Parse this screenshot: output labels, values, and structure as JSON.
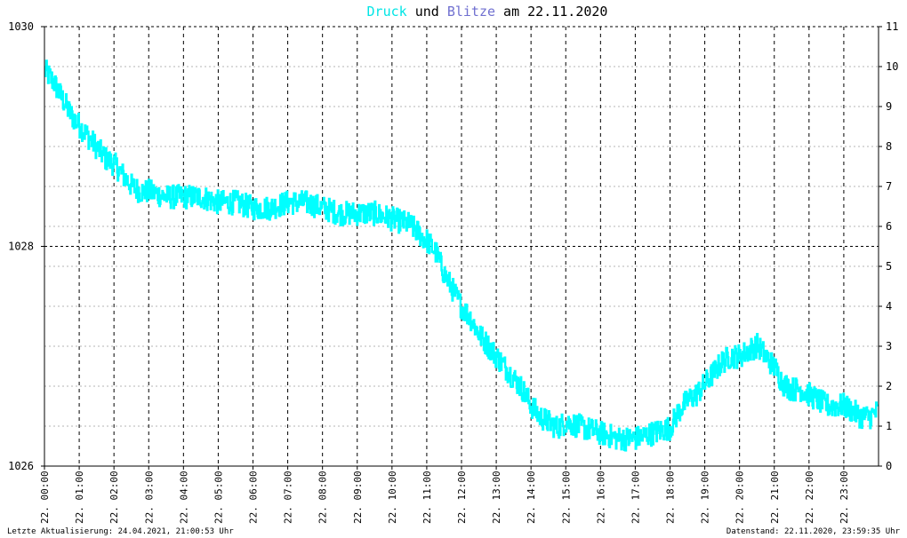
{
  "title": {
    "part1": "Druck",
    "part2": " und ",
    "part3": "Blitze",
    "part4": " am 22.11.2020",
    "color_druck": "#00e5e5",
    "color_blitze": "#7070d0",
    "color_text": "#000000"
  },
  "footer": {
    "left": "Letzte Aktualisierung: 24.04.2021, 21:00:53 Uhr",
    "right": "Datenstand: 22.11.2020, 23:59:35 Uhr"
  },
  "chart_data": {
    "type": "line",
    "x_unit": "hour",
    "xlim": [
      0,
      24
    ],
    "x_tick_labels": [
      "22. 00:00",
      "22. 01:00",
      "22. 02:00",
      "22. 03:00",
      "22. 04:00",
      "22. 05:00",
      "22. 06:00",
      "22. 07:00",
      "22. 08:00",
      "22. 09:00",
      "22. 10:00",
      "22. 11:00",
      "22. 12:00",
      "22. 13:00",
      "22. 14:00",
      "22. 15:00",
      "22. 16:00",
      "22. 17:00",
      "22. 18:00",
      "22. 19:00",
      "22. 20:00",
      "22. 21:00",
      "22. 22:00",
      "22. 23:00"
    ],
    "y_left": {
      "lim": [
        1026,
        1030
      ],
      "tick_labels": [
        "1026",
        "1028",
        "1030"
      ]
    },
    "y_right": {
      "lim": [
        0,
        11
      ],
      "tick_labels": [
        "0",
        "1",
        "2",
        "3",
        "4",
        "5",
        "6",
        "7",
        "8",
        "9",
        "10",
        "11"
      ]
    },
    "grid": true,
    "series": [
      {
        "color": "#00ffff",
        "axis": "left",
        "x": [
          0,
          0.25,
          0.5,
          0.75,
          1.0,
          1.25,
          1.5,
          1.75,
          2.0,
          2.25,
          2.5,
          2.75,
          3.0,
          3.5,
          4.0,
          4.5,
          5.0,
          5.5,
          6.0,
          6.5,
          7.0,
          7.5,
          8.0,
          8.5,
          9.0,
          9.5,
          10.0,
          10.5,
          11.0,
          11.25,
          11.5,
          11.75,
          12.0,
          12.25,
          12.5,
          12.75,
          13.0,
          13.25,
          13.5,
          13.75,
          14.0,
          14.25,
          14.5,
          14.75,
          15.0,
          15.5,
          16.0,
          16.5,
          17.0,
          17.5,
          18.0,
          18.25,
          18.5,
          18.75,
          19.0,
          19.25,
          19.5,
          19.75,
          20.0,
          20.25,
          20.5,
          20.75,
          21.0,
          21.25,
          21.5,
          21.75,
          22.0,
          22.25,
          22.5,
          22.75,
          23.0,
          23.25,
          23.5,
          23.75,
          23.98
        ],
        "y": [
          1029.6,
          1029.5,
          1029.35,
          1029.2,
          1029.1,
          1029.0,
          1028.9,
          1028.8,
          1028.75,
          1028.65,
          1028.55,
          1028.5,
          1028.5,
          1028.45,
          1028.45,
          1028.45,
          1028.4,
          1028.4,
          1028.35,
          1028.35,
          1028.4,
          1028.4,
          1028.35,
          1028.3,
          1028.3,
          1028.3,
          1028.25,
          1028.2,
          1028.05,
          1027.95,
          1027.75,
          1027.6,
          1027.45,
          1027.35,
          1027.2,
          1027.1,
          1027.0,
          1026.9,
          1026.8,
          1026.7,
          1026.55,
          1026.45,
          1026.4,
          1026.35,
          1026.4,
          1026.35,
          1026.3,
          1026.25,
          1026.25,
          1026.3,
          1026.35,
          1026.5,
          1026.6,
          1026.65,
          1026.75,
          1026.85,
          1026.95,
          1027.0,
          1027.0,
          1027.05,
          1027.1,
          1027.0,
          1026.9,
          1026.75,
          1026.7,
          1026.7,
          1026.65,
          1026.6,
          1026.55,
          1026.55,
          1026.55,
          1026.5,
          1026.45,
          1026.45,
          1026.5
        ]
      }
    ]
  }
}
